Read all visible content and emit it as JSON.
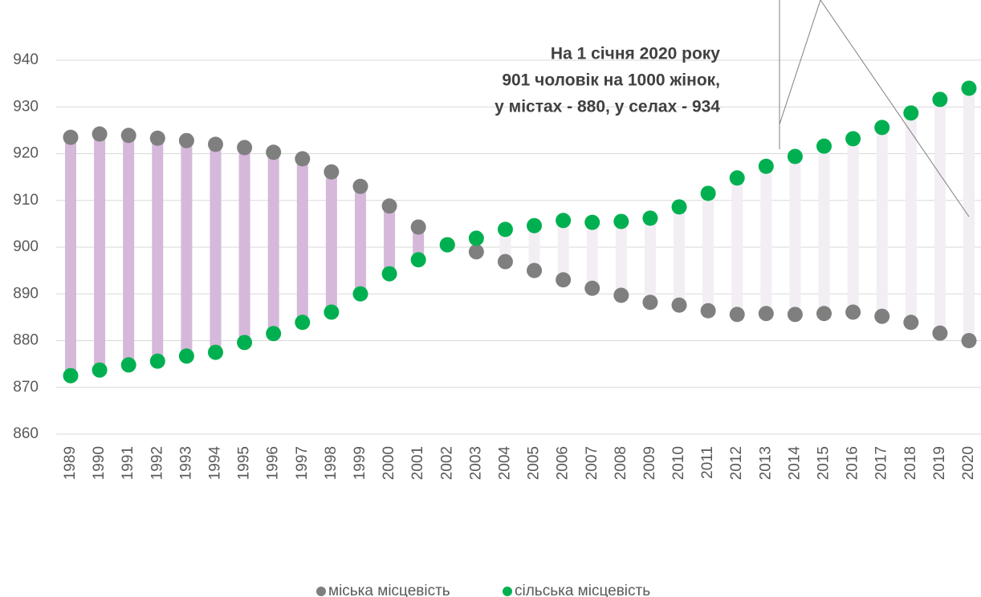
{
  "chart_data": {
    "type": "dumbbell",
    "annotation": [
      "На 1 січня 2020 року",
      "901 чоловік на 1000 жінок,",
      "у містах - 880, у селах - 934"
    ],
    "categories": [
      "1989",
      "1990",
      "1991",
      "1992",
      "1993",
      "1994",
      "1995",
      "1996",
      "1997",
      "1998",
      "1999",
      "2000",
      "2001",
      "2002",
      "2003",
      "2004",
      "2005",
      "2006",
      "2007",
      "2008",
      "2009",
      "2010",
      "2011",
      "2012",
      "2013",
      "2014",
      "2015",
      "2016",
      "2017",
      "2018",
      "2019",
      "2020"
    ],
    "series": [
      {
        "name": "міська місцевість",
        "color": "#7f7f7f",
        "values": [
          923.5,
          924.2,
          923.9,
          923.3,
          922.8,
          922.0,
          921.3,
          920.3,
          918.9,
          916.1,
          913.0,
          908.8,
          904.3,
          900.5,
          899.0,
          896.9,
          895.0,
          893.0,
          891.2,
          889.7,
          888.2,
          887.6,
          886.4,
          885.6,
          885.8,
          885.6,
          885.8,
          886.1,
          885.2,
          883.9,
          881.6,
          880
        ]
      },
      {
        "name": "сільська місцевість",
        "color": "#00b050",
        "values": [
          872.5,
          873.7,
          874.8,
          875.6,
          876.7,
          877.5,
          879.6,
          881.5,
          883.9,
          886.1,
          890.0,
          894.3,
          897.3,
          900.5,
          901.9,
          903.8,
          904.6,
          905.7,
          905.3,
          905.5,
          906.2,
          908.6,
          911.5,
          914.8,
          917.3,
          919.4,
          921.6,
          923.2,
          925.6,
          928.7,
          931.6,
          934
        ]
      }
    ],
    "range_colors": {
      "first_higher": "#d5b8da",
      "second_higher": "#f2eef4"
    },
    "ylim": [
      860,
      950
    ],
    "yticks": [
      860,
      870,
      880,
      890,
      900,
      910,
      920,
      930,
      940
    ],
    "grid": true
  }
}
